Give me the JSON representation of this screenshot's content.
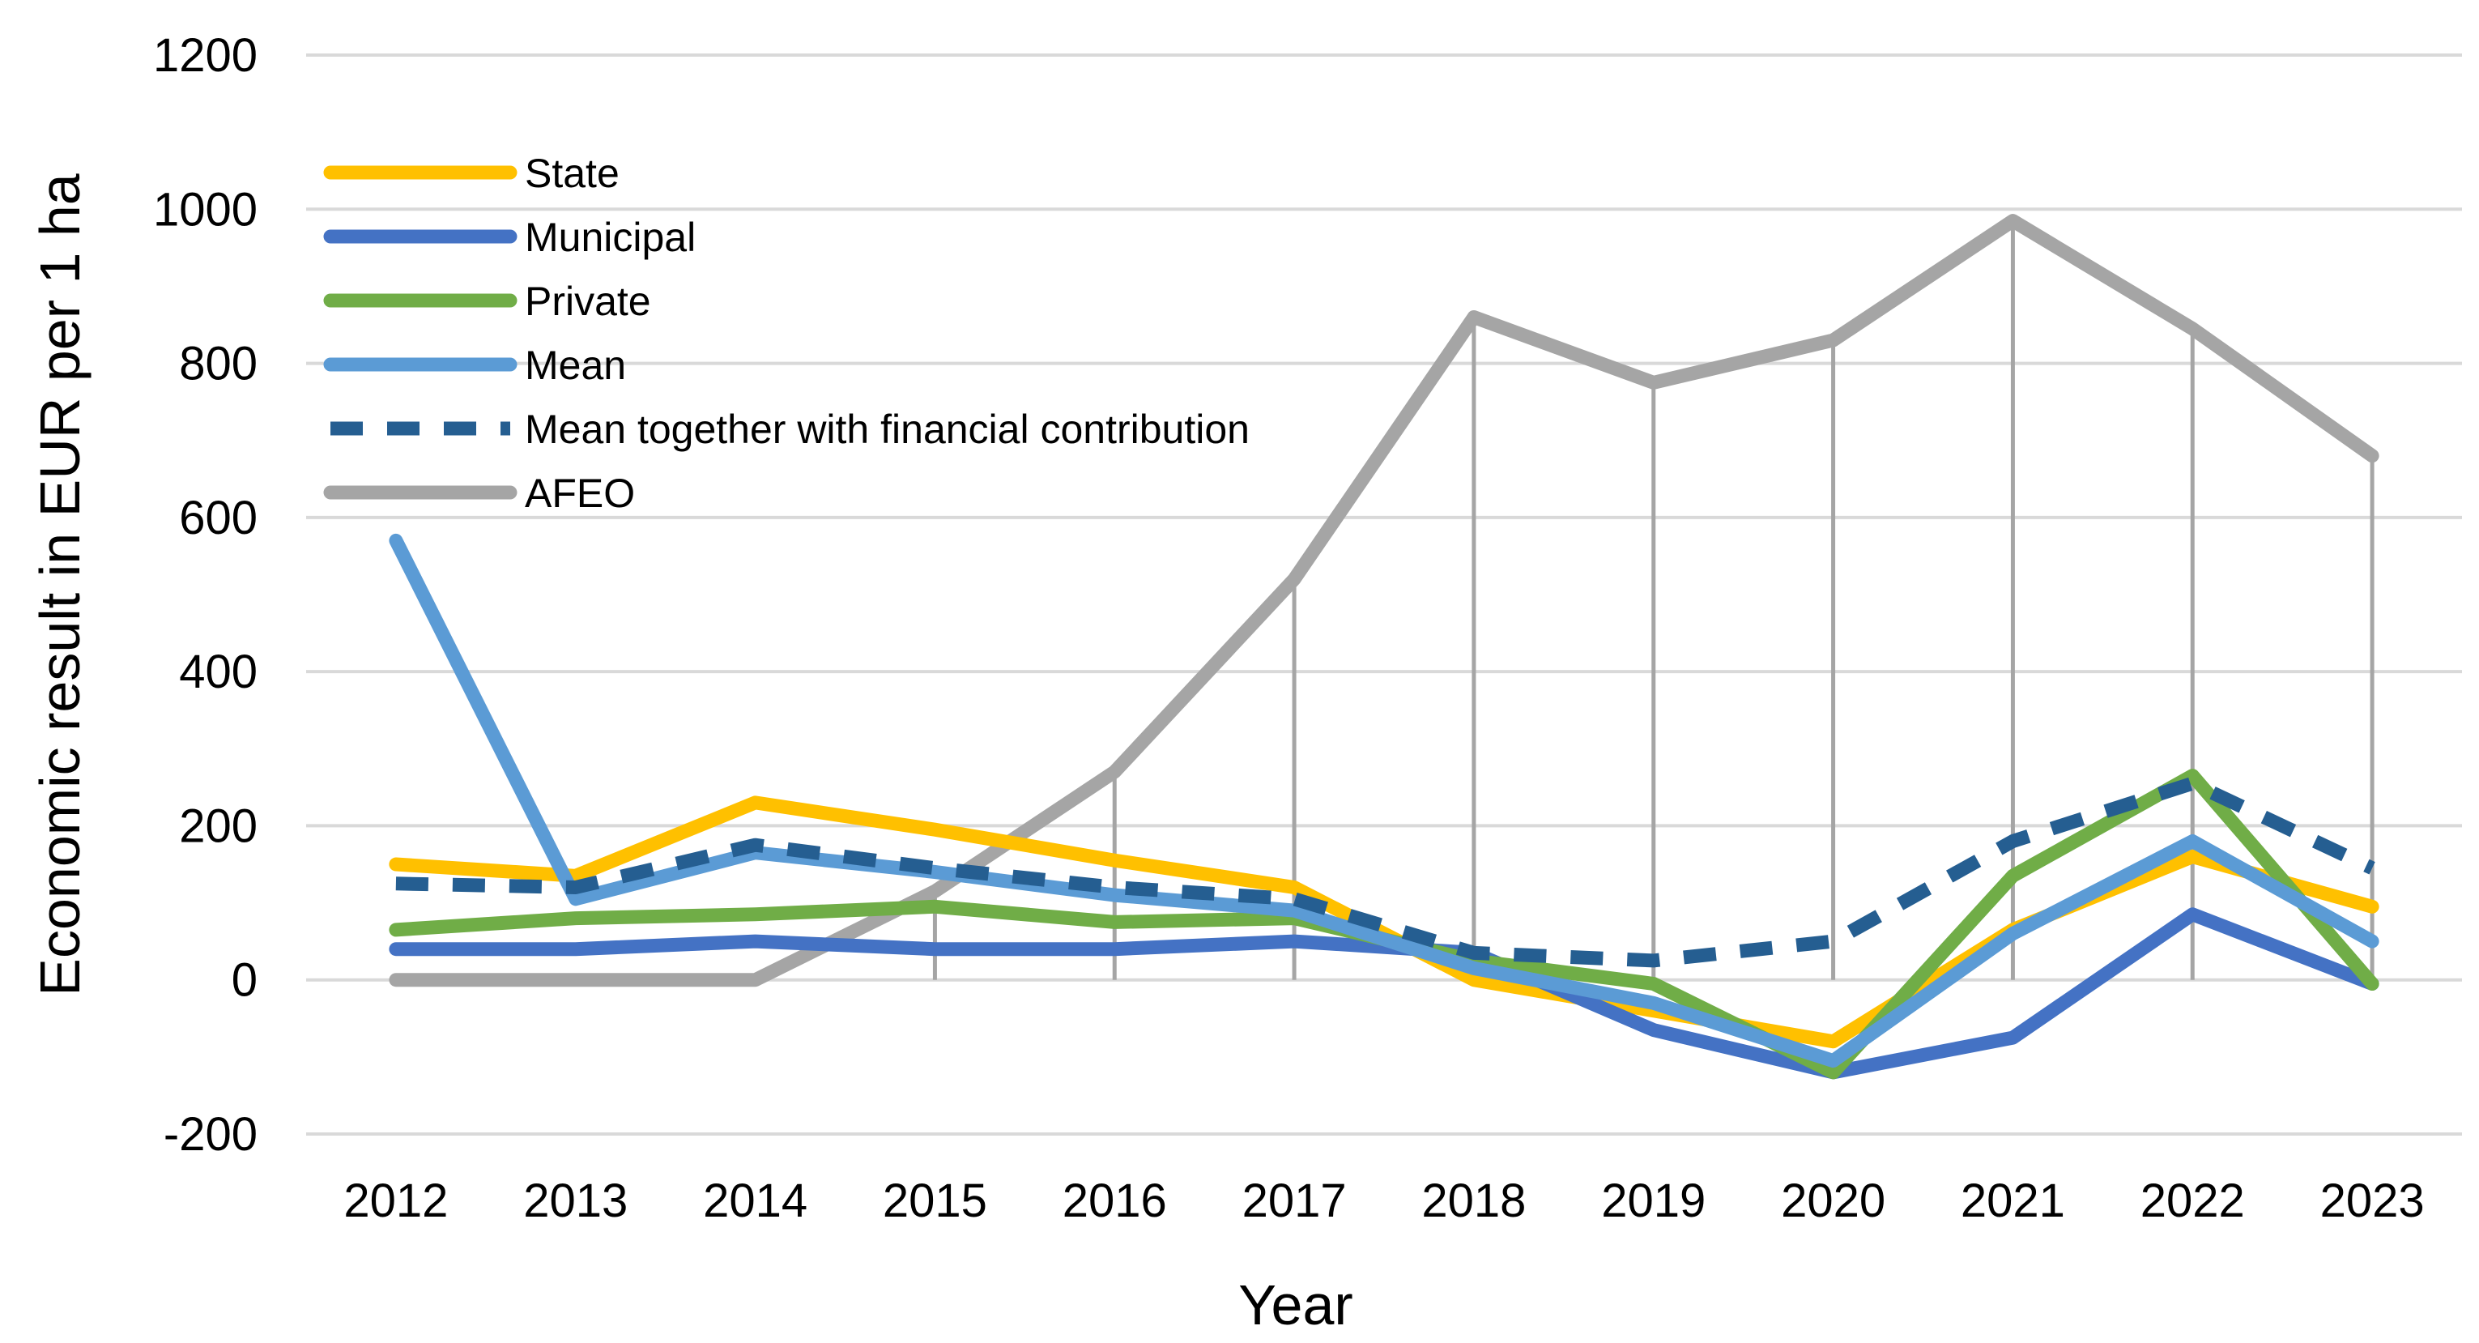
{
  "chart_data": {
    "type": "line",
    "title": "",
    "xlabel": "Year",
    "ylabel": "Economic result in EUR per 1 ha",
    "categories": [
      "2012",
      "2013",
      "2014",
      "2015",
      "2016",
      "2017",
      "2018",
      "2019",
      "2020",
      "2021",
      "2022",
      "2023"
    ],
    "ylim": [
      -200,
      1200
    ],
    "yticks": [
      "-200",
      "0",
      "200",
      "400",
      "600",
      "800",
      "1000",
      "1200"
    ],
    "grid": "horizontal",
    "drop_lines": "from AFEO to 0",
    "legend_position": "top-left",
    "series": [
      {
        "name": "State",
        "color": "#FFC000",
        "style": "solid",
        "values": [
          150,
          135,
          230,
          195,
          155,
          120,
          0,
          -40,
          -80,
          65,
          160,
          95
        ]
      },
      {
        "name": "Municipal",
        "color": "#4472C4",
        "style": "solid",
        "values": [
          40,
          40,
          50,
          40,
          40,
          50,
          35,
          -65,
          -120,
          -75,
          85,
          -5
        ]
      },
      {
        "name": "Private",
        "color": "#70AD47",
        "style": "solid",
        "values": [
          65,
          80,
          85,
          95,
          75,
          80,
          25,
          -5,
          -120,
          135,
          265,
          -5
        ]
      },
      {
        "name": "Mean",
        "color": "#5B9BD5",
        "style": "solid",
        "values": [
          570,
          105,
          165,
          140,
          110,
          90,
          15,
          -30,
          -105,
          60,
          180,
          50
        ]
      },
      {
        "name": "Mean together with financial contribution",
        "color": "#255E91",
        "style": "dashed",
        "values": [
          125,
          120,
          175,
          145,
          120,
          105,
          35,
          25,
          50,
          180,
          255,
          145
        ]
      },
      {
        "name": "AFEO",
        "color": "#A5A5A5",
        "style": "solid",
        "values": [
          0,
          0,
          0,
          115,
          270,
          520,
          860,
          775,
          830,
          985,
          845,
          680
        ]
      }
    ]
  }
}
